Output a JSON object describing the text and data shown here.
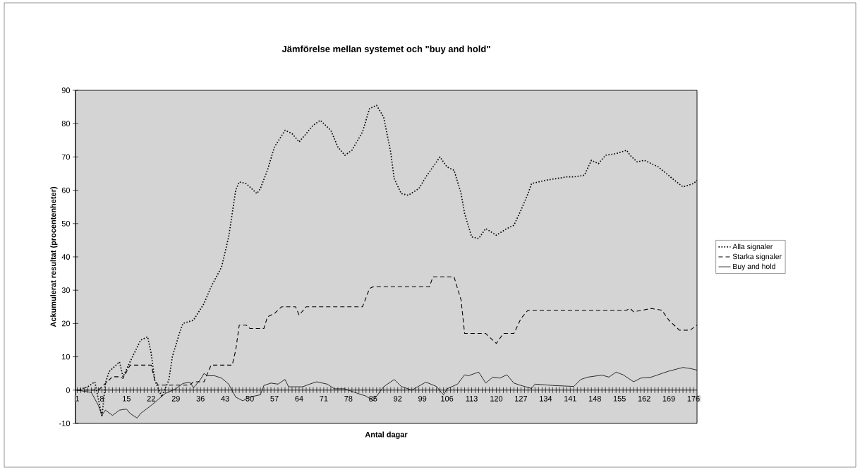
{
  "chart_data": {
    "type": "line",
    "title": "Jämförelse mellan systemet och \"buy and hold\"",
    "xlabel": "Antal dagar",
    "ylabel": "Ackumulerat resultat (procentenheter)",
    "xlim": [
      0.5,
      177
    ],
    "xticks": [
      1,
      8,
      15,
      22,
      29,
      36,
      43,
      50,
      57,
      64,
      71,
      78,
      85,
      92,
      99,
      106,
      113,
      120,
      127,
      134,
      141,
      148,
      155,
      162,
      169,
      176
    ],
    "ylim": [
      -10,
      90
    ],
    "yticks": [
      -10,
      0,
      10,
      20,
      30,
      40,
      50,
      60,
      70,
      80,
      90
    ],
    "grid": false,
    "legend": "right",
    "marker": "none",
    "series": [
      {
        "name": "Alla signaler",
        "color": "#000000",
        "line_style": "dotted",
        "x": [
          1,
          4,
          6,
          8,
          9,
          10,
          13,
          14,
          16,
          19,
          21,
          22,
          23,
          25,
          27,
          28,
          30,
          31,
          34,
          37,
          39,
          42,
          44,
          46,
          47,
          49,
          52,
          53,
          55,
          57,
          60,
          62,
          64,
          66,
          68,
          70,
          73,
          75,
          77,
          79,
          82,
          84,
          86,
          88,
          90,
          91,
          93,
          95,
          98,
          100,
          102,
          104,
          106,
          108,
          110,
          111,
          113,
          115,
          117,
          120,
          123,
          125,
          127,
          129,
          130,
          134,
          140,
          142,
          145,
          147,
          149,
          151,
          154,
          157,
          158,
          160,
          162,
          166,
          170,
          173,
          176,
          177
        ],
        "values": [
          0,
          1,
          2.5,
          -8,
          2,
          5.5,
          8.5,
          4,
          8.5,
          15,
          16,
          11,
          3,
          -2,
          3,
          10,
          17,
          20,
          21,
          26,
          31,
          37,
          46,
          60,
          62.5,
          62,
          59,
          60.5,
          66,
          73,
          78,
          77,
          74.5,
          77,
          79.5,
          81,
          78,
          73,
          70.5,
          72,
          77.5,
          84.5,
          85.5,
          82,
          71.5,
          63.5,
          59,
          58.5,
          60.5,
          64,
          67,
          70,
          67,
          66,
          59,
          53,
          46,
          45.5,
          48.5,
          46.5,
          48.5,
          49.5,
          54,
          59,
          62,
          63,
          64,
          64,
          64.5,
          69,
          68,
          70.5,
          71,
          72,
          70.5,
          68.5,
          69,
          67,
          63.5,
          61,
          62,
          63
        ]
      },
      {
        "name": "Starka signaler",
        "color": "#000000",
        "line_style": "dashed",
        "x": [
          1,
          7,
          9,
          11,
          13,
          14,
          16,
          22,
          23,
          24,
          33,
          34,
          37,
          38,
          39,
          45,
          46,
          47,
          49,
          50,
          54,
          55,
          57,
          59,
          63,
          64,
          66,
          82,
          84,
          85,
          101,
          102,
          108,
          110,
          111,
          117,
          120,
          122,
          125,
          127,
          129,
          157,
          158,
          159,
          164,
          167,
          169,
          172,
          175,
          177
        ],
        "values": [
          0,
          0,
          2,
          4,
          4,
          3.5,
          7.5,
          7.5,
          3,
          1.5,
          1.5,
          2.5,
          2.5,
          5,
          7.5,
          7.5,
          12,
          19.5,
          19.5,
          18.5,
          18.5,
          22,
          23,
          25,
          25,
          22.5,
          25,
          25,
          30.5,
          31,
          31,
          34,
          34,
          27,
          17,
          17,
          14,
          17,
          17,
          21.5,
          24,
          24,
          24.5,
          23.5,
          24.5,
          24,
          21,
          18,
          18,
          19.5
        ]
      },
      {
        "name": "Buy and hold",
        "color": "#000000",
        "line_style": "solid",
        "x": [
          1,
          5,
          7,
          8,
          9,
          11,
          13,
          15,
          16,
          18,
          19,
          22,
          26,
          29,
          31,
          33,
          34,
          36,
          37,
          38,
          40,
          42,
          44,
          46,
          48,
          50,
          53,
          54,
          56,
          58,
          60,
          61,
          65,
          67,
          69,
          72,
          74,
          77,
          79,
          83,
          85,
          88,
          91,
          93,
          96,
          100,
          103,
          105,
          106,
          109,
          111,
          112,
          115,
          117,
          119,
          121,
          123,
          125,
          127,
          130,
          131,
          136,
          142,
          144,
          146,
          150,
          152,
          154,
          156,
          159,
          161,
          164,
          167,
          169,
          173,
          175,
          177
        ],
        "values": [
          0,
          -0.7,
          -4.6,
          -7.5,
          -6,
          -7.6,
          -6,
          -5.7,
          -7,
          -8.4,
          -7,
          -4.6,
          -1,
          0.4,
          2,
          2.4,
          0.7,
          3.2,
          5,
          4.3,
          4.3,
          3.6,
          1.8,
          -2.1,
          -3.2,
          -2.1,
          -1.4,
          1.4,
          2.1,
          1.8,
          3.2,
          1,
          1,
          1.8,
          2.5,
          1.8,
          0.4,
          0.4,
          -0.4,
          -1.8,
          -3.2,
          1,
          3.2,
          1.1,
          0,
          2.4,
          1.1,
          -1.4,
          0.4,
          1.8,
          4.6,
          4.3,
          5.4,
          2.1,
          3.9,
          3.6,
          4.6,
          2.1,
          1.4,
          0.5,
          1.8,
          1.4,
          1.1,
          3.2,
          3.9,
          4.5,
          3.9,
          5.4,
          4.6,
          2.5,
          3.6,
          3.9,
          5,
          5.7,
          6.8,
          6.5,
          6
        ]
      }
    ]
  }
}
